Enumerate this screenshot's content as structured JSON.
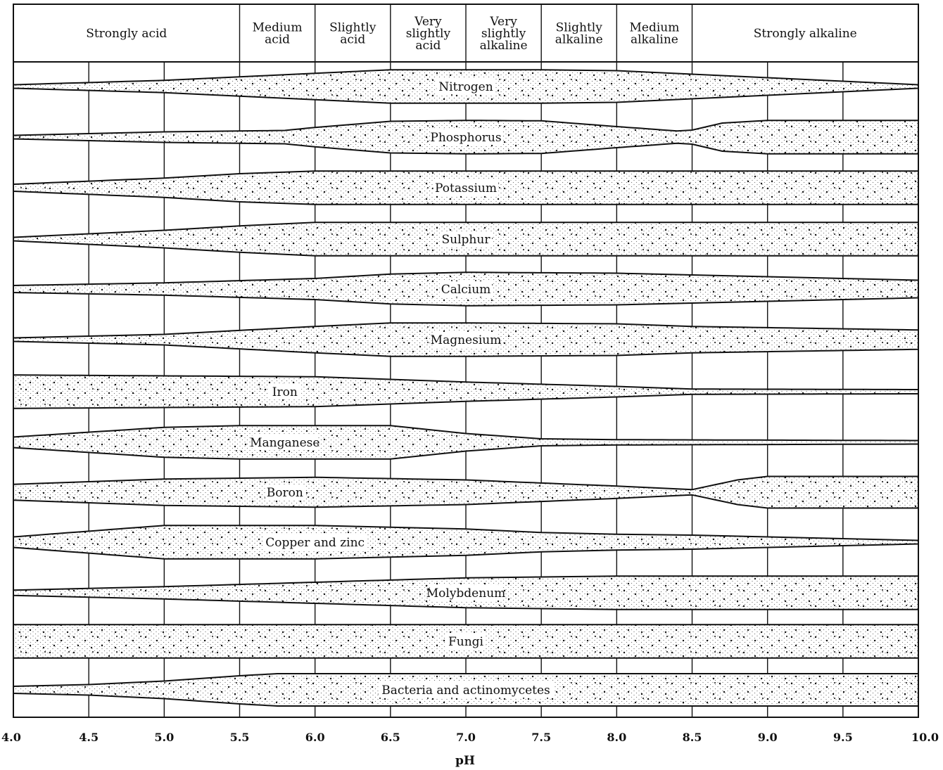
{
  "chart_data": {
    "type": "area",
    "xlabel": "pH",
    "xlim": [
      4.0,
      10.0
    ],
    "x_ticks": [
      "4.0",
      "4.5",
      "5.0",
      "5.5",
      "6.0",
      "6.5",
      "7.0",
      "7.5",
      "8.0",
      "8.5",
      "9.0",
      "9.5",
      "10.0"
    ],
    "grid": true,
    "colors": {
      "line": "#111111",
      "stipple": "#111111",
      "background": "#ffffff"
    },
    "zones": [
      {
        "lines": [
          "Strongly acid"
        ],
        "from": 4.0,
        "to": 5.5
      },
      {
        "lines": [
          "Medium",
          "acid"
        ],
        "from": 5.5,
        "to": 6.0
      },
      {
        "lines": [
          "Slightly",
          "acid"
        ],
        "from": 6.0,
        "to": 6.5
      },
      {
        "lines": [
          "Very",
          "slightly",
          "acid"
        ],
        "from": 6.5,
        "to": 7.0
      },
      {
        "lines": [
          "Very",
          "slightly",
          "alkaline"
        ],
        "from": 7.0,
        "to": 7.5
      },
      {
        "lines": [
          "Slightly",
          "alkaline"
        ],
        "from": 7.5,
        "to": 8.0
      },
      {
        "lines": [
          "Medium",
          "alkaline"
        ],
        "from": 8.0,
        "to": 8.5
      },
      {
        "lines": [
          "Strongly alkaline"
        ],
        "from": 8.5,
        "to": 10.0
      }
    ],
    "series": [
      {
        "name": "Nitrogen",
        "label_x": 7.0,
        "x": [
          4.0,
          5.0,
          6.0,
          6.5,
          7.0,
          7.5,
          8.0,
          8.5,
          9.0,
          9.5,
          10.0
        ],
        "width": [
          0.1,
          0.35,
          0.75,
          0.95,
          0.95,
          0.95,
          0.9,
          0.7,
          0.5,
          0.3,
          0.1
        ]
      },
      {
        "name": "Phosphorus",
        "label_x": 7.0,
        "x": [
          4.0,
          5.0,
          5.8,
          6.0,
          6.5,
          7.0,
          7.5,
          8.0,
          8.4,
          8.5,
          8.7,
          9.0,
          9.5,
          10.0
        ],
        "width": [
          0.1,
          0.3,
          0.38,
          0.55,
          0.9,
          0.95,
          0.93,
          0.6,
          0.35,
          0.4,
          0.8,
          0.95,
          0.95,
          0.95
        ]
      },
      {
        "name": "Potassium",
        "label_x": 7.0,
        "x": [
          4.0,
          5.0,
          5.5,
          6.0,
          10.0
        ],
        "width": [
          0.2,
          0.55,
          0.8,
          0.95,
          0.95
        ]
      },
      {
        "name": "Sulphur",
        "label_x": 7.0,
        "x": [
          4.0,
          5.0,
          5.5,
          6.0,
          10.0
        ],
        "width": [
          0.1,
          0.5,
          0.75,
          0.95,
          0.95
        ]
      },
      {
        "name": "Calcium",
        "label_x": 7.0,
        "x": [
          4.0,
          5.0,
          6.0,
          6.5,
          7.0,
          8.0,
          9.0,
          10.0
        ],
        "width": [
          0.2,
          0.35,
          0.6,
          0.85,
          0.95,
          0.9,
          0.7,
          0.5
        ]
      },
      {
        "name": "Magnesium",
        "label_x": 7.0,
        "x": [
          4.0,
          5.0,
          6.0,
          6.5,
          7.0,
          8.0,
          8.5,
          10.0
        ],
        "width": [
          0.1,
          0.3,
          0.75,
          0.95,
          0.95,
          0.9,
          0.75,
          0.55
        ]
      },
      {
        "name": "Iron",
        "label_x": 5.8,
        "x": [
          4.0,
          6.0,
          7.0,
          8.0,
          8.5,
          10.0
        ],
        "width": [
          0.95,
          0.85,
          0.55,
          0.3,
          0.15,
          0.12
        ]
      },
      {
        "name": "Manganese",
        "label_x": 5.8,
        "x": [
          4.0,
          5.0,
          5.5,
          6.5,
          7.0,
          7.5,
          8.0,
          10.0
        ],
        "width": [
          0.3,
          0.85,
          0.95,
          0.95,
          0.5,
          0.2,
          0.15,
          0.1
        ]
      },
      {
        "name": "Boron",
        "label_x": 5.8,
        "x": [
          4.0,
          5.0,
          6.0,
          7.0,
          8.0,
          8.5,
          8.8,
          9.0,
          9.5,
          10.0
        ],
        "width": [
          0.45,
          0.75,
          0.85,
          0.7,
          0.35,
          0.15,
          0.7,
          0.9,
          0.9,
          0.9
        ]
      },
      {
        "name": "Copper and zinc",
        "label_x": 6.0,
        "x": [
          4.0,
          5.0,
          6.0,
          7.0,
          7.5,
          8.0,
          8.5,
          9.0,
          10.0
        ],
        "width": [
          0.3,
          0.95,
          0.95,
          0.75,
          0.55,
          0.45,
          0.4,
          0.3,
          0.1
        ]
      },
      {
        "name": "Molybdenum",
        "label_x": 7.0,
        "x": [
          4.0,
          5.0,
          6.0,
          7.0,
          8.0,
          8.5,
          10.0
        ],
        "width": [
          0.15,
          0.35,
          0.6,
          0.85,
          0.95,
          0.95,
          0.95
        ]
      },
      {
        "name": "Fungi",
        "label_x": 7.0,
        "x": [
          4.0,
          10.0
        ],
        "width": [
          0.95,
          0.95
        ]
      },
      {
        "name": "Bacteria and actinomycetes",
        "label_x": 7.0,
        "x": [
          4.0,
          4.5,
          5.0,
          5.5,
          5.75,
          10.0
        ],
        "width": [
          0.2,
          0.3,
          0.5,
          0.8,
          0.92,
          0.92
        ]
      }
    ]
  }
}
